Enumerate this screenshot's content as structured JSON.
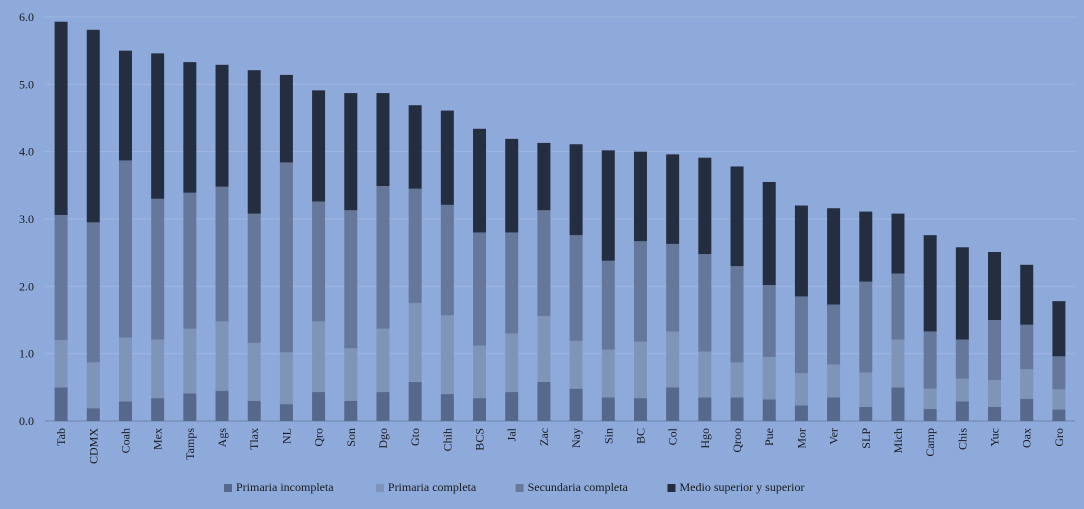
{
  "chart_data": {
    "type": "bar",
    "stacked": true,
    "title": "",
    "xlabel": "",
    "ylabel": "",
    "ylim": [
      0,
      6
    ],
    "yticks": [
      "0.0",
      "1.0",
      "2.0",
      "3.0",
      "4.0",
      "5.0",
      "6.0"
    ],
    "grid": true,
    "legend_position": "bottom",
    "categories": [
      "Tab",
      "CDMX",
      "Coah",
      "Mex",
      "Tamps",
      "Ags",
      "Tlax",
      "NL",
      "Qro",
      "Son",
      "Dgo",
      "Gto",
      "Chih",
      "BCS",
      "Jal",
      "Zac",
      "Nay",
      "Sin",
      "BC",
      "Col",
      "Hgo",
      "Qroo",
      "Pue",
      "Mor",
      "Ver",
      "SLP",
      "Mich",
      "Camp",
      "Chis",
      "Yuc",
      "Oax",
      "Gro"
    ],
    "series": [
      {
        "name": "Primaria incompleta",
        "color": "#56698a",
        "values": [
          0.5,
          0.19,
          0.29,
          0.34,
          0.41,
          0.45,
          0.3,
          0.25,
          0.43,
          0.3,
          0.43,
          0.58,
          0.4,
          0.34,
          0.43,
          0.58,
          0.48,
          0.35,
          0.34,
          0.5,
          0.35,
          0.35,
          0.32,
          0.23,
          0.35,
          0.21,
          0.5,
          0.18,
          0.29,
          0.21,
          0.33,
          0.17
        ]
      },
      {
        "name": "Primaria completa",
        "color": "#7f95b8",
        "values": [
          0.7,
          0.68,
          0.95,
          0.87,
          0.96,
          1.03,
          0.86,
          0.77,
          1.05,
          0.78,
          0.94,
          1.17,
          1.17,
          0.78,
          0.87,
          0.98,
          0.71,
          0.71,
          0.84,
          0.83,
          0.68,
          0.52,
          0.63,
          0.48,
          0.49,
          0.51,
          0.71,
          0.3,
          0.34,
          0.4,
          0.44,
          0.3
        ]
      },
      {
        "name": "Secundaria completa",
        "color": "#66789a",
        "values": [
          1.86,
          2.08,
          2.63,
          2.09,
          2.02,
          2.0,
          1.92,
          2.82,
          1.78,
          2.05,
          2.12,
          1.7,
          1.64,
          1.68,
          1.5,
          1.57,
          1.57,
          1.32,
          1.49,
          1.3,
          1.45,
          1.43,
          1.07,
          1.14,
          0.89,
          1.35,
          0.98,
          0.85,
          0.58,
          0.89,
          0.66,
          0.49
        ]
      },
      {
        "name": "Medio superior y superior",
        "color": "#242e40",
        "values": [
          2.87,
          2.86,
          1.63,
          2.16,
          1.94,
          1.81,
          2.13,
          1.3,
          1.65,
          1.74,
          1.38,
          1.24,
          1.4,
          1.54,
          1.39,
          1.0,
          1.35,
          1.64,
          1.33,
          1.33,
          1.43,
          1.48,
          1.53,
          1.35,
          1.43,
          1.04,
          0.89,
          1.43,
          1.37,
          1.01,
          0.89,
          0.82
        ]
      }
    ]
  }
}
